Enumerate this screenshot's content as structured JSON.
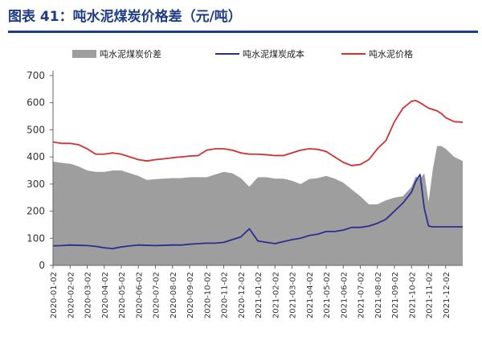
{
  "title": "图表 41：吨水泥煤炭价格差（元/吨）",
  "colors": {
    "title": "#1f3c88",
    "spread": "#9e9e9e",
    "cost": "#2a2f8f",
    "price": "#d32f2f"
  },
  "chart_data": {
    "type": "area",
    "legend_position": "top",
    "grid": false,
    "ylim": [
      0,
      700
    ],
    "yticks": [
      0,
      100,
      200,
      300,
      400,
      500,
      600,
      700
    ],
    "x_labels": [
      "2020-01-02",
      "2020-02-02",
      "2020-03-02",
      "2020-04-02",
      "2020-05-02",
      "2020-06-02",
      "2020-07-02",
      "2020-08-02",
      "2020-09-02",
      "2020-10-02",
      "2020-11-02",
      "2020-12-02",
      "2021-01-02",
      "2021-02-02",
      "2021-03-02",
      "2021-04-02",
      "2021-05-02",
      "2021-06-02",
      "2021-07-02",
      "2021-08-02",
      "2021-09-02",
      "2021-10-02",
      "2021-11-02",
      "2021-12-02"
    ],
    "x": [
      0,
      0.5,
      1,
      1.5,
      2,
      2.5,
      3,
      3.5,
      4,
      4.5,
      5,
      5.5,
      6,
      6.5,
      7,
      7.5,
      8,
      8.5,
      9,
      9.5,
      10,
      10.5,
      11,
      11.5,
      12,
      12.5,
      13,
      13.5,
      14,
      14.5,
      15,
      15.5,
      16,
      16.5,
      17,
      17.5,
      18,
      18.5,
      19,
      19.5,
      20,
      20.5,
      21,
      21.25,
      21.5,
      21.75,
      22,
      22.25,
      22.5,
      22.75,
      23,
      23.5,
      24
    ],
    "series": [
      {
        "name": "吨水泥煤炭价差",
        "kind": "area",
        "values": [
          383,
          378,
          375,
          365,
          350,
          345,
          345,
          350,
          350,
          340,
          330,
          315,
          318,
          320,
          322,
          322,
          325,
          325,
          325,
          335,
          345,
          340,
          322,
          290,
          325,
          325,
          320,
          320,
          312,
          300,
          318,
          322,
          330,
          320,
          305,
          280,
          255,
          225,
          225,
          240,
          250,
          255,
          290,
          328,
          320,
          340,
          235,
          355,
          440,
          440,
          430,
          400,
          385
        ]
      },
      {
        "name": "吨水泥煤炭成本",
        "kind": "line",
        "values": [
          72,
          73,
          75,
          74,
          73,
          70,
          65,
          62,
          68,
          72,
          75,
          74,
          73,
          74,
          75,
          75,
          78,
          80,
          82,
          82,
          85,
          95,
          105,
          135,
          90,
          85,
          80,
          88,
          95,
          100,
          110,
          115,
          125,
          125,
          130,
          140,
          140,
          145,
          155,
          170,
          200,
          230,
          270,
          310,
          335,
          210,
          145,
          142,
          142,
          142,
          142,
          142,
          142
        ]
      },
      {
        "name": "吨水泥价格",
        "kind": "line",
        "values": [
          455,
          450,
          450,
          445,
          430,
          410,
          410,
          415,
          410,
          400,
          390,
          385,
          390,
          393,
          397,
          400,
          403,
          405,
          425,
          430,
          430,
          425,
          415,
          410,
          410,
          408,
          405,
          405,
          415,
          425,
          430,
          428,
          420,
          400,
          380,
          368,
          372,
          390,
          430,
          460,
          530,
          580,
          605,
          608,
          600,
          590,
          580,
          575,
          570,
          560,
          545,
          530,
          528
        ]
      }
    ]
  }
}
